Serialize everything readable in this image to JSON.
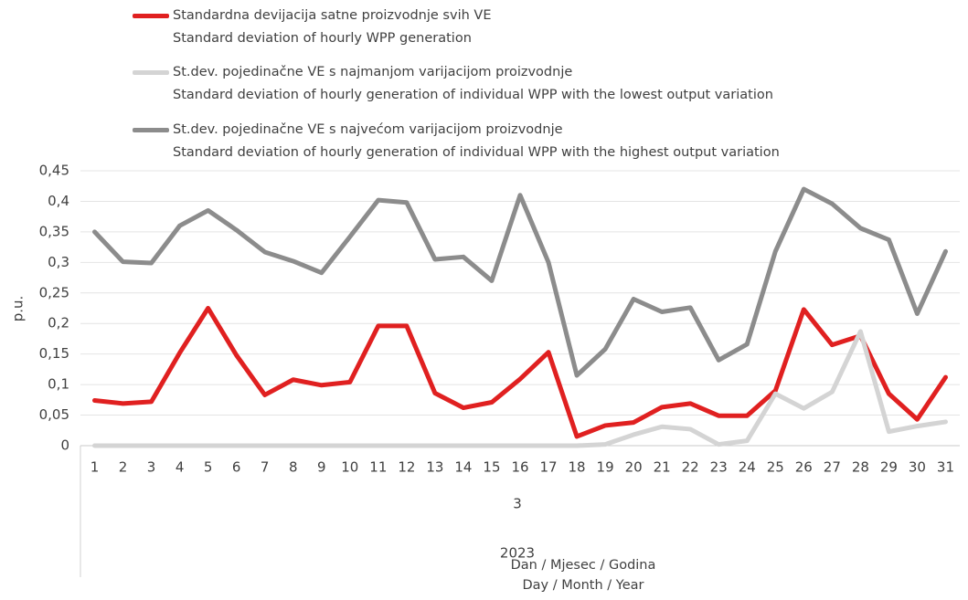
{
  "chart_data": {
    "type": "line",
    "y_label": "p.u.",
    "x_label": "Dan / Mjesec / Godina\nDay / Month / Year",
    "month_label": "3",
    "year_label": "2023",
    "categories": [
      "1",
      "2",
      "3",
      "4",
      "5",
      "6",
      "7",
      "8",
      "9",
      "10",
      "11",
      "12",
      "13",
      "14",
      "15",
      "16",
      "17",
      "18",
      "19",
      "20",
      "21",
      "22",
      "23",
      "24",
      "25",
      "26",
      "27",
      "28",
      "29",
      "30",
      "31"
    ],
    "ylim": [
      0,
      0.45
    ],
    "yticks": [
      0,
      {
        "value": 0.05,
        "label": "0,05"
      },
      {
        "value": 0.1,
        "label": "0,1"
      },
      {
        "value": 0.15,
        "label": "0,15"
      },
      {
        "value": 0.2,
        "label": "0,2"
      },
      {
        "value": 0.25,
        "label": "0,25"
      },
      {
        "value": 0.3,
        "label": "0,3"
      },
      {
        "value": 0.35,
        "label": "0,35"
      },
      {
        "value": 0.4,
        "label": "0,4"
      },
      {
        "value": 0.45,
        "label": "0,45"
      }
    ],
    "grid": true,
    "series": [
      {
        "name": "Standardna devijacija satne proizvodnje svih VE\nStandard deviation of hourly WPP generation",
        "color": "#e02020",
        "values": [
          0.074,
          0.069,
          0.072,
          0.152,
          0.225,
          0.148,
          0.083,
          0.108,
          0.099,
          0.104,
          0.196,
          0.196,
          0.086,
          0.062,
          0.071,
          0.109,
          0.153,
          0.015,
          0.033,
          0.038,
          0.063,
          0.069,
          0.049,
          0.049,
          0.09,
          0.223,
          0.165,
          0.18,
          0.085,
          0.043,
          0.112
        ]
      },
      {
        "name": "St.dev. pojedinačne VE s najmanjom varijacijom proizvodnje\nStandard deviation of hourly generation of individual WPP with the lowest output variation",
        "color": "#d4d4d4",
        "values": [
          0,
          0,
          0,
          0,
          0,
          0,
          0,
          0,
          0,
          0,
          0,
          0,
          0,
          0,
          0,
          0,
          0,
          0,
          0.002,
          0.018,
          0.031,
          0.027,
          0.002,
          0.008,
          0.085,
          0.061,
          0.088,
          0.187,
          0.023,
          0.032,
          0.039
        ]
      },
      {
        "name": "St.dev. pojedinačne VE s najvećom varijacijom proizvodnje\nStandard deviation of hourly generation of individual WPP with the highest output variation",
        "color": "#8c8c8c",
        "values": [
          0.35,
          0.301,
          0.299,
          0.36,
          0.385,
          0.353,
          0.317,
          0.302,
          0.283,
          0.342,
          0.402,
          0.398,
          0.305,
          0.309,
          0.27,
          0.41,
          0.3,
          0.115,
          0.158,
          0.24,
          0.219,
          0.226,
          0.14,
          0.166,
          0.318,
          0.42,
          0.396,
          0.356,
          0.337,
          0.216,
          0.318
        ]
      }
    ]
  }
}
